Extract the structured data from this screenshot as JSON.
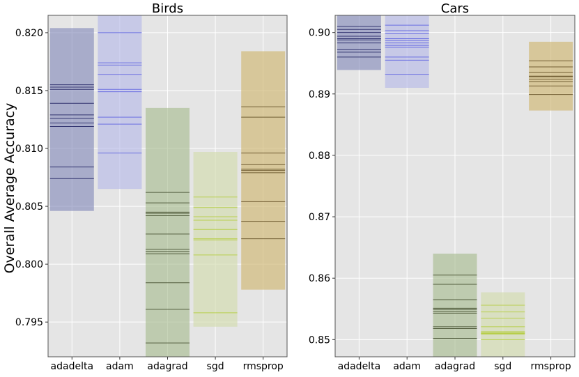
{
  "figure": {
    "ylabel": "Overall Average Accuracy"
  },
  "chart_data": [
    {
      "type": "bar",
      "subtype": "floating-range-with-lines",
      "title": "Birds",
      "xlabel": "",
      "ylabel": "Overall Average Accuracy",
      "ylim": [
        0.792,
        0.8215
      ],
      "yticks": [
        0.795,
        0.8,
        0.805,
        0.81,
        0.815,
        0.82
      ],
      "ytick_labels": [
        "0.795",
        "0.800",
        "0.805",
        "0.810",
        "0.815",
        "0.820"
      ],
      "grid": true,
      "categories": [
        "adadelta",
        "adam",
        "adagrad",
        "sgd",
        "rmsprop"
      ],
      "series": [
        {
          "name": "adadelta",
          "color": "#7f86b8",
          "fill_opacity": 0.6,
          "line_color": "#1f2060",
          "range": [
            0.8046,
            0.8204
          ],
          "lines": [
            0.8074,
            0.8084,
            0.8119,
            0.8122,
            0.8126,
            0.8129,
            0.8139,
            0.8151,
            0.8153,
            0.8155
          ]
        },
        {
          "name": "adam",
          "color": "#b3b5e8",
          "fill_opacity": 0.6,
          "line_color": "#5b5fe0",
          "range": [
            0.8065,
            0.8215
          ],
          "lines": [
            0.8096,
            0.8121,
            0.8127,
            0.8149,
            0.8151,
            0.8164,
            0.8172,
            0.8174,
            0.82
          ]
        },
        {
          "name": "adagrad",
          "color": "#a3b98a",
          "fill_opacity": 0.6,
          "line_color": "#3f4a2a",
          "range": [
            0.792,
            0.8135
          ],
          "lines": [
            0.7932,
            0.7961,
            0.7984,
            0.8009,
            0.8011,
            0.8013,
            0.8026,
            0.8042,
            0.8044,
            0.8045,
            0.8053,
            0.8062
          ]
        },
        {
          "name": "sgd",
          "color": "#d4ddb2",
          "fill_opacity": 0.7,
          "line_color": "#b3cc3a",
          "range": [
            0.7946,
            0.8097
          ],
          "lines": [
            0.7958,
            0.8008,
            0.8021,
            0.8022,
            0.803,
            0.8038,
            0.8041,
            0.8049,
            0.8058
          ]
        },
        {
          "name": "rmsprop",
          "color": "#d2bb7a",
          "fill_opacity": 0.7,
          "line_color": "#5e4a20",
          "range": [
            0.7978,
            0.8184
          ],
          "lines": [
            0.8022,
            0.8037,
            0.8054,
            0.8079,
            0.8081,
            0.8082,
            0.8086,
            0.8096,
            0.8127,
            0.8136
          ]
        }
      ]
    },
    {
      "type": "bar",
      "subtype": "floating-range-with-lines",
      "title": "Cars",
      "xlabel": "",
      "ylabel": "",
      "ylim": [
        0.8472,
        0.9028
      ],
      "yticks": [
        0.85,
        0.86,
        0.87,
        0.88,
        0.89,
        0.9
      ],
      "ytick_labels": [
        "0.85",
        "0.86",
        "0.87",
        "0.88",
        "0.89",
        "0.90"
      ],
      "grid": true,
      "categories": [
        "adadelta",
        "adam",
        "adagrad",
        "sgd",
        "rmsprop"
      ],
      "series": [
        {
          "name": "adadelta",
          "color": "#7f86b8",
          "fill_opacity": 0.6,
          "line_color": "#1f2060",
          "range": [
            0.8939,
            0.9028
          ],
          "lines": [
            0.896,
            0.8968,
            0.8972,
            0.8983,
            0.8988,
            0.899,
            0.8994,
            0.9,
            0.9005,
            0.901
          ]
        },
        {
          "name": "adam",
          "color": "#b3b5e8",
          "fill_opacity": 0.6,
          "line_color": "#5b5fe0",
          "range": [
            0.891,
            0.9028
          ],
          "lines": [
            0.8932,
            0.8955,
            0.896,
            0.8976,
            0.8979,
            0.8983,
            0.8987,
            0.899,
            0.8998,
            0.9003,
            0.9012
          ]
        },
        {
          "name": "adagrad",
          "color": "#a3b98a",
          "fill_opacity": 0.6,
          "line_color": "#3f4a2a",
          "range": [
            0.8472,
            0.864
          ],
          "lines": [
            0.8502,
            0.8518,
            0.8521,
            0.8543,
            0.8546,
            0.8549,
            0.8551,
            0.8565,
            0.859,
            0.8605
          ]
        },
        {
          "name": "sgd",
          "color": "#d4ddb2",
          "fill_opacity": 0.7,
          "line_color": "#b3cc3a",
          "range": [
            0.8472,
            0.8577
          ],
          "lines": [
            0.85,
            0.8509,
            0.851,
            0.8511,
            0.8513,
            0.8521,
            0.8535,
            0.8545,
            0.8556
          ]
        },
        {
          "name": "rmsprop",
          "color": "#d2bb7a",
          "fill_opacity": 0.7,
          "line_color": "#5e4a20",
          "range": [
            0.8873,
            0.8985
          ],
          "lines": [
            0.8899,
            0.8913,
            0.892,
            0.8924,
            0.8928,
            0.8929,
            0.8935,
            0.8944,
            0.8954
          ]
        }
      ]
    }
  ]
}
